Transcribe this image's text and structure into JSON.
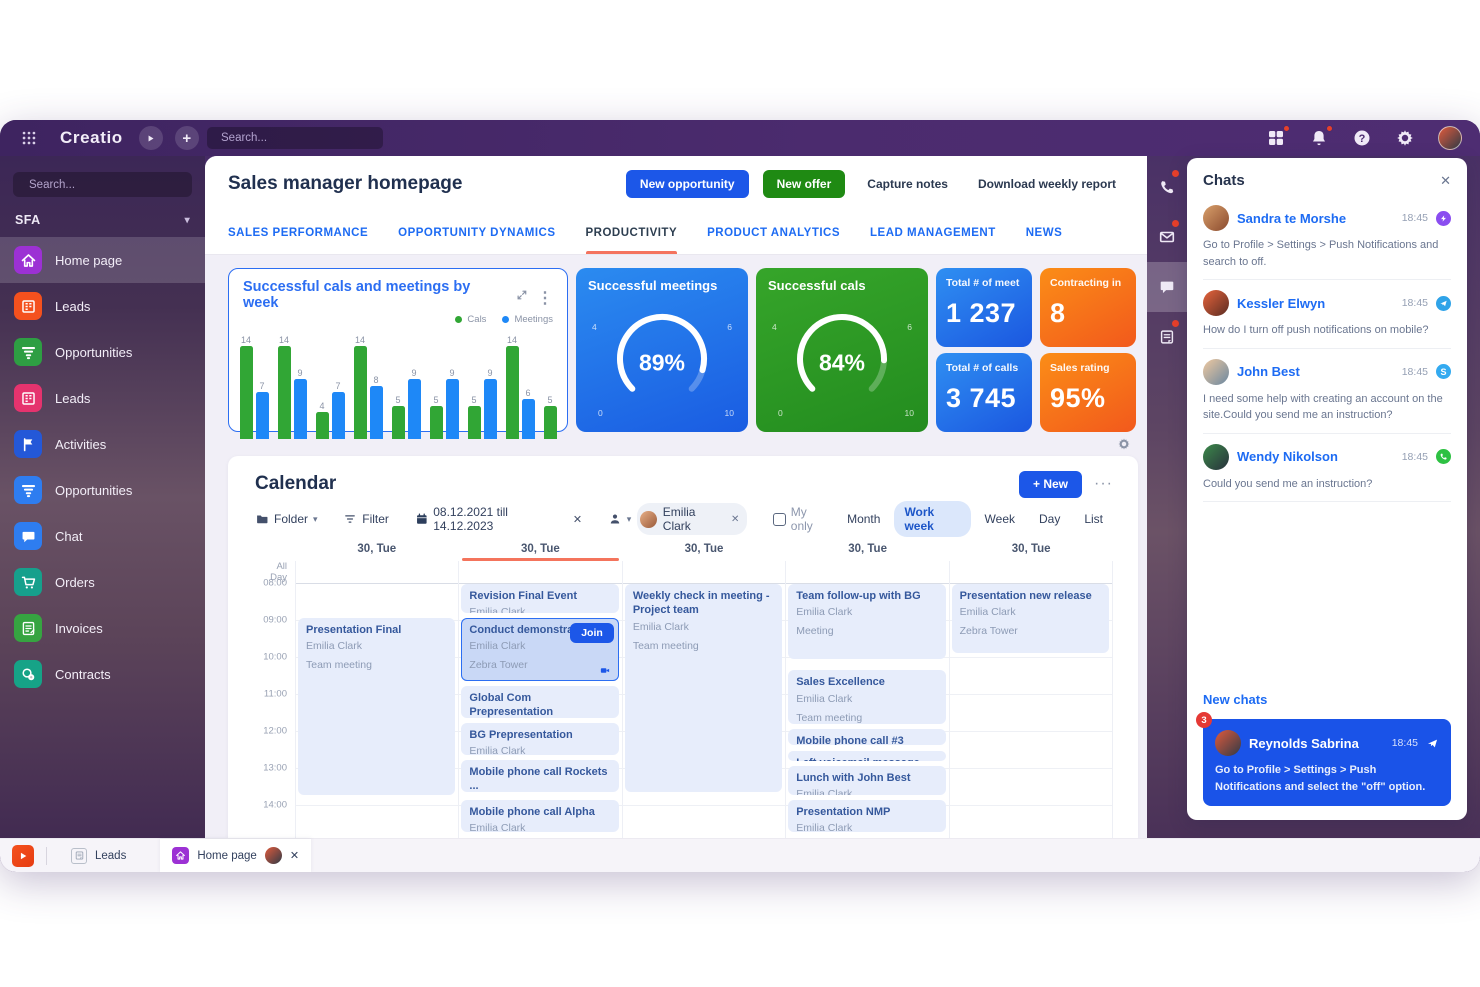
{
  "topbar": {
    "logo": "Creatio",
    "search_placeholder": "Search...",
    "icons": [
      {
        "name": "tiles",
        "badge": true
      },
      {
        "name": "bell",
        "badge": true
      },
      {
        "name": "help",
        "badge": false
      },
      {
        "name": "gear",
        "badge": false
      }
    ]
  },
  "sidebar": {
    "search_placeholder": "Search...",
    "workspace": "SFA",
    "items": [
      {
        "label": "Home page",
        "icon": "home",
        "color": "#9c31d4",
        "active": true
      },
      {
        "label": "Leads",
        "icon": "building",
        "color": "#f4511e",
        "active": false
      },
      {
        "label": "Opportunities",
        "icon": "funnel",
        "color": "#2e9e43",
        "active": false
      },
      {
        "label": "Leads",
        "icon": "building",
        "color": "#e5336e",
        "active": false
      },
      {
        "label": "Activities",
        "icon": "flag",
        "color": "#2458d8",
        "active": false
      },
      {
        "label": "Opportunities",
        "icon": "funnel",
        "color": "#2e7df0",
        "active": false
      },
      {
        "label": "Chat",
        "icon": "chat",
        "color": "#2e7df0",
        "active": false
      },
      {
        "label": "Orders",
        "icon": "cart",
        "color": "#16a08c",
        "active": false
      },
      {
        "label": "Invoices",
        "icon": "invoice",
        "color": "#36a441",
        "active": false
      },
      {
        "label": "Contracts",
        "icon": "contract",
        "color": "#16a387",
        "active": false
      }
    ]
  },
  "page": {
    "title": "Sales manager homepage",
    "actions": {
      "primary": "New opportunity",
      "secondary": "New offer",
      "tertiary": "Capture notes",
      "quaternary": "Download weekly report"
    },
    "tabs": [
      {
        "label": "SALES PERFORMANCE",
        "active": false
      },
      {
        "label": "OPPORTUNITY DYNAMICS",
        "active": false
      },
      {
        "label": "PRODUCTIVITY",
        "active": true
      },
      {
        "label": "PRODUCT ANALYTICS",
        "active": false
      },
      {
        "label": "LEAD MANAGEMENT",
        "active": false
      },
      {
        "label": "NEWS",
        "active": false
      }
    ]
  },
  "chart_data": [
    {
      "type": "bar",
      "title": "Successful cals and meetings by week",
      "legend_position": "top-right",
      "grid": false,
      "ylim": [
        0,
        14
      ],
      "value_labels": true,
      "series": [
        {
          "name": "Cals",
          "color": "#31a635",
          "values": [
            14,
            14,
            4,
            14,
            5,
            5,
            5,
            14,
            5
          ]
        },
        {
          "name": "Meetings",
          "color": "#1e88f7",
          "values": [
            7,
            9,
            7,
            8,
            9,
            9,
            9,
            6,
            null
          ]
        }
      ]
    },
    {
      "type": "gauge",
      "title": "Successful meetings",
      "value": 89,
      "unit": "%",
      "min": 0,
      "max": 10,
      "tick_labels": [
        "4",
        "6",
        "0",
        "10"
      ],
      "bg": "blue"
    },
    {
      "type": "gauge",
      "title": "Successful cals",
      "value": 84,
      "unit": "%",
      "min": 0,
      "max": 10,
      "tick_labels": [
        "4",
        "6",
        "0",
        "10"
      ],
      "bg": "green"
    }
  ],
  "kpis": [
    {
      "title": "Total # of meet",
      "value": "1 237",
      "color": "blue"
    },
    {
      "title": "Contracting in",
      "value": "8",
      "color": "orange"
    },
    {
      "title": "Total # of calls",
      "value": "3 745",
      "color": "blue"
    },
    {
      "title": "Sales rating",
      "value": "95%",
      "color": "orange"
    }
  ],
  "calendar": {
    "title": "Calendar",
    "new_button": "+ New",
    "toolbar": {
      "folder": "Folder",
      "filter": "Filter",
      "date_range": "08.12.2021 till 14.12.2023",
      "person_chip": "Emilia Clark",
      "my_only": "My only"
    },
    "view_modes": [
      {
        "label": "Month",
        "active": false
      },
      {
        "label": "Work week",
        "active": true
      },
      {
        "label": "Week",
        "active": false
      },
      {
        "label": "Day",
        "active": false
      },
      {
        "label": "List",
        "active": false
      }
    ],
    "all_day_label": "All Day",
    "times": [
      "08:00",
      "09:00",
      "10:00",
      "11:00",
      "12:00",
      "13:00",
      "14:00"
    ],
    "columns": [
      {
        "day": "30, Tue",
        "active": false,
        "events": [
          {
            "title": "Presentation Final",
            "subtitle": "Emilia Clark",
            "note": "Team meeting",
            "start": "08:55",
            "end": "13:45"
          }
        ]
      },
      {
        "day": "30, Tue",
        "active": true,
        "events": [
          {
            "title": "Revision Final Event",
            "subtitle": "Emilia Clark",
            "start": "08:00",
            "end": "08:50"
          },
          {
            "title": "Conduct demonstration",
            "subtitle": "Emilia Clark",
            "note": "Zebra Tower",
            "start": "08:55",
            "end": "10:40",
            "selected": true,
            "join_label": "Join",
            "has_video": true
          },
          {
            "title": "Global Com Prepresentation",
            "subtitle": "Emilia Clark",
            "start": "10:45",
            "end": "11:40"
          },
          {
            "title": "BG Prepresentation",
            "subtitle": "Emilia Clark",
            "start": "11:45",
            "end": "12:40"
          },
          {
            "title": "Mobile phone call Rockets ...",
            "subtitle": "Emilia Clark",
            "start": "12:45",
            "end": "13:40"
          },
          {
            "title": "Mobile phone call Alpha",
            "subtitle": "Emilia Clark",
            "start": "13:50",
            "end": "14:45"
          }
        ]
      },
      {
        "day": "30, Tue",
        "active": false,
        "events": [
          {
            "title": "Weekly check in meeting - Project team",
            "subtitle": "Emilia Clark",
            "note": "Team meeting",
            "start": "08:00",
            "end": "13:40"
          }
        ]
      },
      {
        "day": "30, Tue",
        "active": false,
        "events": [
          {
            "title": "Team follow-up with BG",
            "subtitle": "Emilia Clark",
            "note": "Meeting",
            "start": "08:00",
            "end": "10:05"
          },
          {
            "title": "Sales Excellence",
            "subtitle": "Emilia Clark",
            "note": "Team meeting",
            "start": "10:20",
            "end": "11:50"
          },
          {
            "title": "Mobile phone call #3",
            "start": "11:55",
            "end": "12:25"
          },
          {
            "title": "Left voicemail message",
            "start": "12:30",
            "end": "12:50",
            "strikethrough": true
          },
          {
            "title": "Lunch with John Best",
            "subtitle": "Emilia Clark",
            "start": "12:55",
            "end": "13:45"
          },
          {
            "title": "Presentation NMP",
            "subtitle": "Emilia Clark",
            "start": "13:50",
            "end": "14:45"
          }
        ]
      },
      {
        "day": "30, Tue",
        "active": false,
        "events": [
          {
            "title": "Presentation new release",
            "subtitle": "Emilia Clark",
            "note": "Zebra Tower",
            "start": "08:00",
            "end": "09:55"
          }
        ]
      }
    ]
  },
  "rail": [
    {
      "icon": "phone",
      "badge": true,
      "active": false
    },
    {
      "icon": "mail",
      "badge": true,
      "active": false
    },
    {
      "icon": "chatbubble",
      "badge": false,
      "active": true
    },
    {
      "icon": "feed",
      "badge": true,
      "active": false
    }
  ],
  "chats": {
    "title": "Chats",
    "items": [
      {
        "name": "Sandra te Morshe",
        "time": "18:45",
        "channel": "messenger",
        "channel_color": "#8a4df0",
        "message": "Go to Profile > Settings > Push Notifications and search to off."
      },
      {
        "name": "Kessler Elwyn",
        "time": "18:45",
        "channel": "telegram",
        "channel_color": "#2fa3e8",
        "message": "How do I turn off push notifications on mobile?"
      },
      {
        "name": "John Best",
        "time": "18:45",
        "channel": "skype",
        "channel_color": "#33aaf0",
        "message": "I need some help with creating an account on the site.Could you send me an instruction?"
      },
      {
        "name": "Wendy Nikolson",
        "time": "18:45",
        "channel": "whatsapp",
        "channel_color": "#2ec143",
        "message": "Could you send me an instruction?"
      }
    ],
    "new_chats_label": "New chats",
    "new_chat": {
      "name": "Reynolds Sabrina",
      "time": "18:45",
      "channel": "telegram",
      "badge": "3",
      "message": "Go to Profile > Settings > Push Notifications and select the \"off\" option."
    }
  },
  "taskbar": {
    "tabs": [
      {
        "label": "Leads",
        "active": false
      },
      {
        "label": "Home page",
        "active": true
      }
    ]
  }
}
